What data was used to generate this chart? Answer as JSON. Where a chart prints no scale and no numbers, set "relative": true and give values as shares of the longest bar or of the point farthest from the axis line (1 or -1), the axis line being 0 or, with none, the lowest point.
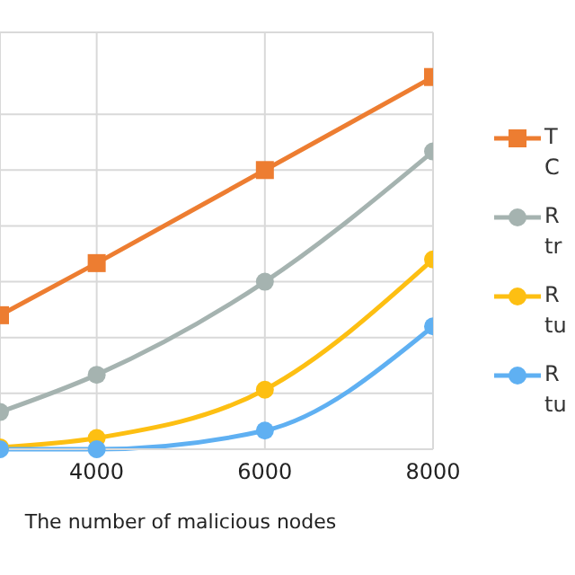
{
  "chart_data": {
    "type": "line",
    "relative": true,
    "xlabel": "The number of malicious nodes",
    "xlim": [
      2850,
      8000
    ],
    "xticks": [
      4000,
      6000,
      8000
    ],
    "grid": true,
    "legend": "right",
    "series": [
      {
        "name": "T C",
        "color": "#ed7d31",
        "marker": "square",
        "x": [
          2850,
          4000,
          6000,
          8000
        ],
        "values": [
          0.36,
          0.5,
          0.75,
          1
        ]
      },
      {
        "name": "R tr",
        "color": "#a5b3b0",
        "marker": "circle",
        "x": [
          2850,
          4000,
          6000,
          8000
        ],
        "values": [
          0.1,
          0.2,
          0.45,
          0.8
        ]
      },
      {
        "name": "R tu",
        "color": "#fdbf12",
        "marker": "circle",
        "x": [
          2850,
          4000,
          6000,
          8000
        ],
        "values": [
          0.005,
          0.03,
          0.16,
          0.51
        ]
      },
      {
        "name": "R tu",
        "color": "#5fb0f2",
        "marker": "circle",
        "x": [
          2850,
          4000,
          6000,
          8000
        ],
        "values": [
          0,
          0,
          0.05,
          0.33
        ]
      }
    ]
  }
}
